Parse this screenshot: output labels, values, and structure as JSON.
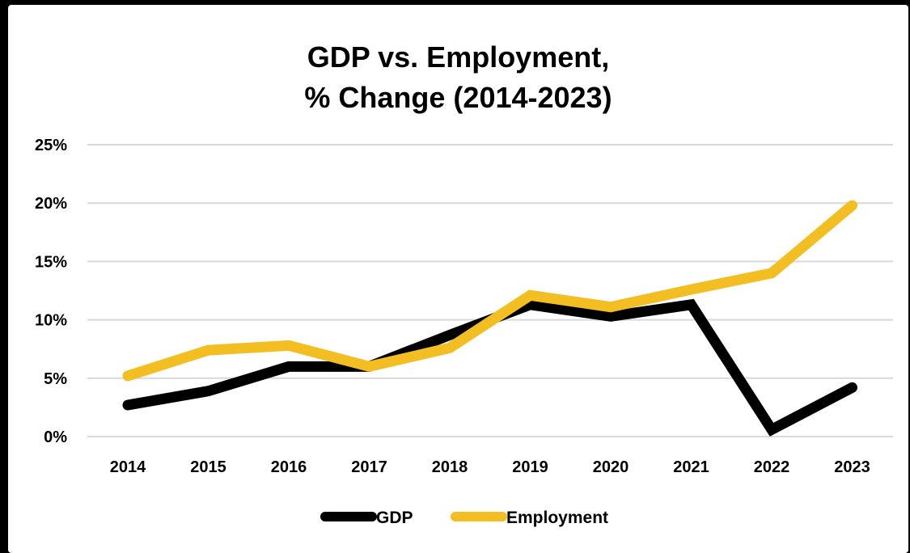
{
  "chart_data": {
    "type": "line",
    "title": "GDP vs. Employment,",
    "subtitle": "% Change (2014-2023)",
    "xlabel": "",
    "ylabel": "",
    "x": [
      "2014",
      "2015",
      "2016",
      "2017",
      "2018",
      "2019",
      "2020",
      "2021",
      "2022",
      "2023"
    ],
    "ylim": [
      0,
      25
    ],
    "yticks": [
      0,
      5,
      10,
      15,
      20,
      25
    ],
    "ytick_labels": [
      "0%",
      "5%",
      "10%",
      "15%",
      "20%",
      "25%"
    ],
    "grid": true,
    "legend_position": "bottom",
    "series": [
      {
        "name": "GDP",
        "color": "#000000",
        "values": [
          2.7,
          3.9,
          6.0,
          6.0,
          8.7,
          11.3,
          10.3,
          11.3,
          0.6,
          4.2
        ]
      },
      {
        "name": "Employment",
        "color": "#F2BE22",
        "values": [
          5.2,
          7.4,
          7.8,
          6.0,
          7.6,
          12.1,
          11.1,
          12.6,
          14.0,
          19.8
        ]
      }
    ]
  }
}
